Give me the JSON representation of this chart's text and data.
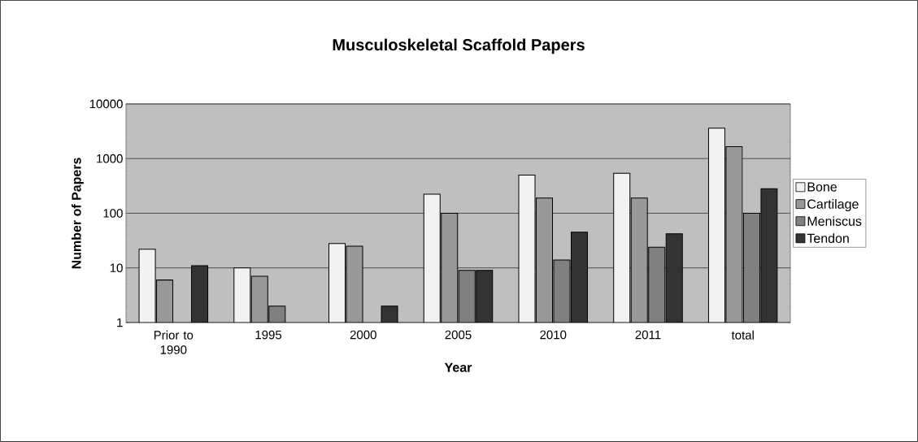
{
  "chart_data": {
    "type": "bar",
    "title": "Musculoskeletal Scaffold Papers",
    "xlabel": "Year",
    "ylabel": "Number of Papers",
    "categories": [
      "Prior to 1990",
      "1995",
      "2000",
      "2005",
      "2010",
      "2011",
      "total"
    ],
    "series": [
      {
        "name": "Bone",
        "color": "#f2f2f2",
        "values": [
          22,
          10,
          28,
          224,
          500,
          540,
          3600
        ]
      },
      {
        "name": "Cartilage",
        "color": "#999999",
        "values": [
          6,
          7,
          25,
          100,
          190,
          190,
          1660
        ]
      },
      {
        "name": "Meniscus",
        "color": "#808080",
        "values": [
          null,
          2,
          null,
          9,
          14,
          24,
          100
        ]
      },
      {
        "name": "Tendon",
        "color": "#333333",
        "values": [
          11,
          null,
          2,
          9,
          45,
          42,
          280
        ]
      }
    ],
    "log": "y",
    "ylim": [
      1,
      10000
    ],
    "yticks": [
      1,
      10,
      100,
      1000,
      10000
    ],
    "grid": "y",
    "legend": "right"
  }
}
